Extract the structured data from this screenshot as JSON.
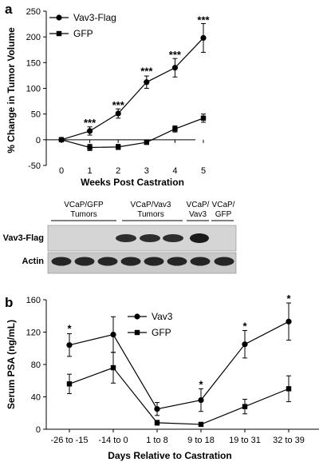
{
  "panels": {
    "a": {
      "label": "a",
      "chart_data": {
        "type": "line",
        "title": "",
        "xlabel": "Weeks Post Castration",
        "ylabel": "% Change in Tumor Volume",
        "categories": [
          0,
          1,
          2,
          3,
          4,
          5
        ],
        "ylim": [
          -50,
          250
        ],
        "yticks": [
          -50,
          0,
          50,
          100,
          150,
          200,
          250
        ],
        "grid": false,
        "legend": "top-left",
        "series": [
          {
            "name": "Vav3-Flag",
            "marker": "circle",
            "values": [
              0,
              17,
              51,
              112,
              140,
              198
            ],
            "errors": [
              4,
              8,
              9,
              12,
              18,
              28
            ]
          },
          {
            "name": "GFP",
            "marker": "square",
            "values": [
              0,
              -15,
              -14,
              -5,
              21,
              42
            ],
            "errors": [
              4,
              6,
              5,
              4,
              6,
              8
            ]
          }
        ],
        "annotations": [
          {
            "x": 1,
            "text": "***",
            "y": 34
          },
          {
            "x": 2,
            "text": "***",
            "y": 68
          },
          {
            "x": 3,
            "text": "***",
            "y": 134
          },
          {
            "x": 4,
            "text": "***",
            "y": 166
          },
          {
            "x": 5,
            "text": "***",
            "y": 234
          }
        ]
      }
    },
    "blot": {
      "group_labels": [
        [
          "VCaP/GFP",
          "Tumors"
        ],
        [
          "VCaP/Vav3",
          "Tumors"
        ],
        [
          "VCaP/",
          "Vav3"
        ],
        [
          "VCaP/",
          "GFP"
        ]
      ],
      "rows": [
        {
          "label": "Vav3-Flag"
        },
        {
          "label": "Actin"
        }
      ]
    },
    "b": {
      "label": "b",
      "chart_data": {
        "type": "line",
        "title": "",
        "xlabel": "Days Relative to Castration",
        "ylabel": "Serum PSA (ng/mL)",
        "categories": [
          "-26 to -15",
          "-14 to 0",
          "1 to 8",
          "9 to 18",
          "19 to 31",
          "32 to 39"
        ],
        "ylim": [
          0,
          160
        ],
        "yticks": [
          0,
          40,
          80,
          120,
          160
        ],
        "grid": false,
        "legend": "top-center",
        "series": [
          {
            "name": "Vav3",
            "marker": "circle",
            "values": [
              104,
              117,
              25,
              36,
              105,
              133
            ],
            "errors": [
              14,
              22,
              8,
              14,
              17,
              23
            ]
          },
          {
            "name": "GFP",
            "marker": "square",
            "values": [
              56,
              76,
              8,
              6,
              28,
              50
            ],
            "errors": [
              12,
              19,
              3,
              2,
              9,
              16
            ]
          }
        ],
        "annotations": [
          {
            "x": "-26 to -15",
            "text": "*",
            "y": 125
          },
          {
            "x": "9 to 18",
            "text": "*",
            "y": 56
          },
          {
            "x": "19 to 31",
            "text": "*",
            "y": 128
          },
          {
            "x": "32 to 39",
            "text": "*",
            "y": 162
          }
        ]
      }
    }
  }
}
